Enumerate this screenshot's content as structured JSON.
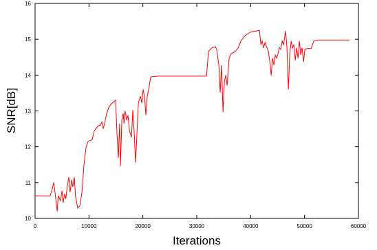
{
  "chart_data": {
    "type": "line",
    "x_label": "Iterations",
    "y_label": "SNR[dB]",
    "color": "#ff0000",
    "xlim": [
      0,
      60000
    ],
    "ylim": [
      10,
      16
    ],
    "xticks": [
      0,
      10000,
      20000,
      30000,
      40000,
      50000,
      60000
    ],
    "yticks": [
      10,
      11,
      12,
      13,
      14,
      15,
      16
    ],
    "x": [
      0,
      2800,
      3200,
      3450,
      3700,
      4100,
      4300,
      4700,
      5000,
      5200,
      5500,
      5700,
      6000,
      6260,
      6500,
      6800,
      7000,
      7280,
      7500,
      7900,
      8300,
      8700,
      9070,
      9450,
      9830,
      10600,
      11000,
      11750,
      12100,
      12400,
      12650,
      12900,
      13280,
      13670,
      14300,
      14940,
      15200,
      15450,
      15700,
      15840,
      16100,
      16350,
      16500,
      16700,
      17000,
      17240,
      17500,
      17880,
      18140,
      18400,
      18650,
      18900,
      19160,
      19540,
      19800,
      20050,
      20300,
      20560,
      20820,
      21070,
      21460,
      22860,
      31800,
      32180,
      32820,
      33460,
      33700,
      34100,
      34350,
      34600,
      34870,
      35120,
      35380,
      35630,
      36000,
      36400,
      37160,
      37680,
      38190,
      38950,
      39970,
      41000,
      41630,
      41890,
      42150,
      42400,
      42660,
      42910,
      43300,
      43550,
      43810,
      44060,
      44320,
      44570,
      44830,
      45080,
      45340,
      45590,
      45850,
      46100,
      46490,
      46740,
      47000,
      47250,
      47510,
      47760,
      48020,
      48280,
      48530,
      48790,
      49040,
      49300,
      49550,
      49810,
      50060,
      50450,
      51210,
      51720,
      52230,
      58360
    ],
    "values": [
      10.63,
      10.63,
      10.83,
      11.0,
      10.73,
      10.2,
      10.63,
      10.5,
      10.77,
      10.44,
      10.69,
      10.54,
      10.92,
      11.15,
      10.73,
      11.08,
      10.88,
      11.15,
      10.63,
      10.29,
      10.35,
      10.73,
      11.5,
      11.98,
      12.15,
      12.2,
      12.45,
      12.59,
      12.6,
      12.69,
      12.5,
      12.65,
      12.93,
      13.1,
      13.22,
      13.3,
      12.36,
      11.69,
      12.65,
      11.46,
      12.74,
      12.93,
      12.65,
      13.0,
      12.74,
      12.88,
      12.46,
      12.26,
      13.03,
      12.36,
      11.56,
      12.36,
      13.22,
      13.41,
      13.22,
      13.6,
      13.41,
      12.88,
      13.41,
      13.6,
      13.95,
      13.97,
      13.97,
      14.66,
      14.76,
      14.79,
      14.72,
      14.28,
      13.51,
      14.28,
      12.97,
      13.8,
      14.0,
      13.71,
      14.47,
      14.6,
      14.66,
      14.76,
      14.95,
      15.1,
      15.2,
      15.23,
      15.25,
      14.85,
      14.95,
      14.76,
      14.91,
      14.81,
      14.66,
      14.37,
      13.99,
      14.47,
      14.28,
      14.56,
      14.47,
      14.6,
      14.76,
      14.72,
      14.95,
      14.85,
      15.23,
      14.76,
      13.6,
      14.56,
      14.95,
      14.76,
      14.85,
      14.41,
      14.76,
      14.47,
      14.95,
      14.56,
      14.76,
      14.37,
      14.72,
      14.74,
      14.74,
      14.95,
      14.98,
      14.98
    ]
  }
}
